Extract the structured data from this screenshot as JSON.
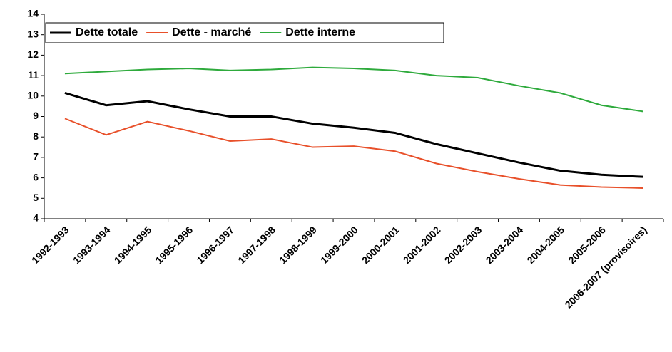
{
  "chart_data": {
    "type": "line",
    "categories": [
      "1992-1993",
      "1993-1994",
      "1994-1995",
      "1995-1996",
      "1996-1997",
      "1997-1998",
      "1998-1999",
      "1999-2000",
      "2000-2001",
      "2001-2002",
      "2002-2003",
      "2003-2004",
      "2004-2005",
      "2005-2006",
      "2006-2007 (provisoires)"
    ],
    "series": [
      {
        "name": "Dette totale",
        "color": "#000000",
        "values": [
          10.15,
          9.55,
          9.75,
          9.35,
          9.0,
          9.0,
          8.65,
          8.45,
          8.2,
          7.65,
          7.2,
          6.75,
          6.35,
          6.15,
          6.05
        ]
      },
      {
        "name": "Dette - marché",
        "color": "#e8502a",
        "values": [
          8.9,
          8.1,
          8.75,
          8.3,
          7.8,
          7.9,
          7.5,
          7.55,
          7.3,
          6.7,
          6.3,
          5.95,
          5.65,
          5.55,
          5.5
        ]
      },
      {
        "name": "Dette interne",
        "color": "#2eaa3c",
        "values": [
          11.1,
          11.2,
          11.3,
          11.35,
          11.25,
          11.3,
          11.4,
          11.35,
          11.25,
          11.0,
          10.9,
          10.5,
          10.15,
          9.55,
          9.25
        ]
      }
    ],
    "ylim": [
      4,
      14
    ],
    "yticks": [
      4,
      5,
      6,
      7,
      8,
      9,
      10,
      11,
      12,
      13,
      14
    ],
    "grid": false,
    "legend": "upper left"
  }
}
